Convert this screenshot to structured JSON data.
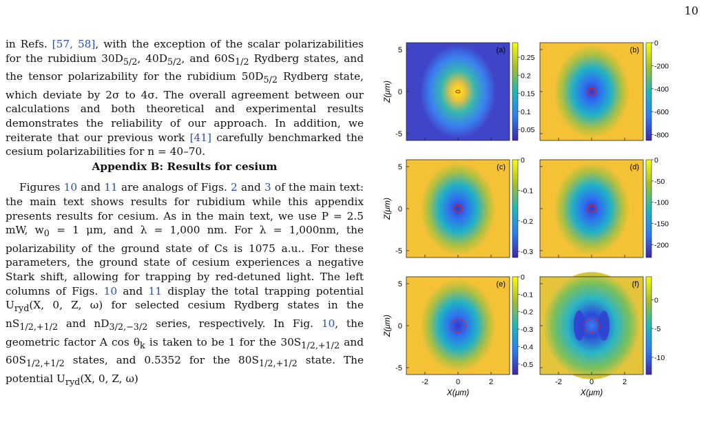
{
  "page_number": "10",
  "para1": {
    "a": "in Refs. ",
    "r1": "[57, 58]",
    "b": ", with the exception of the scalar polarizabilities for the rubidium 30D",
    "b_sub": "5/2",
    "c": ", 40D",
    "c_sub": "5/2",
    "d": ", and 60S",
    "d_sub": "1/2",
    "e": " Rydberg states, and the tensor polarizability for the rubidium 50D",
    "e_sub": "5/2",
    "f": " Rydberg state, which deviate by 2σ to 4σ. The overall agreement between our calculations and both theoretical and experimental results demonstrates the reliability of our approach. In addition, we reiterate that our previous work ",
    "r2": "[41]",
    "g": " carefully benchmarked the cesium polarizabilities for n = 40–70."
  },
  "appendix_heading": "Appendix B: Results for cesium",
  "para2": {
    "a": "Figures ",
    "r1": "10",
    "b": " and ",
    "r2": "11",
    "c": " are analogs of Figs. ",
    "r3": "2",
    "d": " and ",
    "r4": "3",
    "e": " of the main text: the main text shows results for rubidium while this appendix presents results for cesium. As in the main text, we use P = 2.5 mW, w",
    "e_sub": "0",
    "f": " = 1 μm, and λ = 1,000 nm. For λ = 1,000nm, the polarizability of the ground state of Cs is 1075 a.u.. For these parameters, the ground state of cesium experiences a negative Stark shift, allowing for trapping by red-detuned light. The left columns of Figs. ",
    "r5": "10",
    "g": " and ",
    "r6": "11",
    "h": " display the total trapping potential U",
    "h_sub": "ryd",
    "i": "(X, 0, Z, ω) for selected cesium Rydberg states in the nS",
    "i_sub": "1/2,+1/2",
    "j": " and nD",
    "j_sub": "3/2,−3/2",
    "k": " series, respectively. In Fig. ",
    "r7": "10",
    "l": ", the geometric factor A cos θ",
    "l_sub": "k",
    "m": " is taken to be 1 for the 30S",
    "m_sub": "1/2,+1/2",
    "n": " and 60S",
    "n_sub": "1/2,+1/2",
    "o": " states, and 0.5352 for the 80S",
    "o_sub": "1/2,+1/2",
    "p": " state. The potential U",
    "p_sub": "ryd",
    "q": "(X, 0, Z, ω)"
  },
  "figure": {
    "ylabel": "Z(μm)",
    "xlabel": "X(μm)",
    "y_ticks": [
      "5",
      "0",
      "-5"
    ],
    "x_ticks": [
      "-2",
      "0",
      "2"
    ],
    "panels": [
      {
        "label": "(a)",
        "cbar_ticks": [
          "0.25",
          "0.2",
          "0.15",
          "0.1",
          "0.05"
        ],
        "range": [
          0.02,
          0.29
        ]
      },
      {
        "label": "(b)",
        "cbar_ticks": [
          "0",
          "-200",
          "-400",
          "-600",
          "-800"
        ],
        "range": [
          -850,
          0
        ]
      },
      {
        "label": "(c)",
        "cbar_ticks": [
          "0",
          "-0.1",
          "-0.2",
          "-0.3"
        ],
        "range": [
          -0.32,
          0
        ]
      },
      {
        "label": "(d)",
        "cbar_ticks": [
          "0",
          "-50",
          "-100",
          "-150",
          "-200"
        ],
        "range": [
          -230,
          0
        ]
      },
      {
        "label": "(e)",
        "cbar_ticks": [
          "0",
          "-0.1",
          "-0.2",
          "-0.3",
          "-0.4",
          "-0.5"
        ],
        "range": [
          -0.56,
          0
        ]
      },
      {
        "label": "(f)",
        "cbar_ticks": [
          "0",
          "-5",
          "-10"
        ],
        "range": [
          -13,
          4
        ]
      }
    ],
    "colors": {
      "low": "#3e26a8",
      "mid": "#1fb8b5",
      "high": "#f9fb0e",
      "contour": "#e02020"
    }
  }
}
